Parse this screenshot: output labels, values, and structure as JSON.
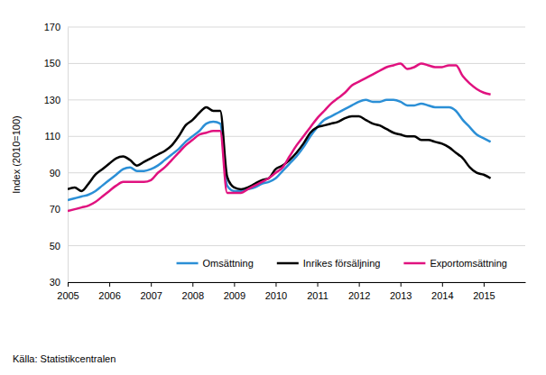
{
  "chart_data": {
    "type": "line",
    "y_label": "Index (2010=100)",
    "source": "Källa: Statistikcentralen",
    "xlim": [
      2005,
      2016
    ],
    "xticks": [
      2005,
      2006,
      2007,
      2008,
      2009,
      2010,
      2011,
      2012,
      2013,
      2014,
      2015
    ],
    "ylim": [
      30,
      170
    ],
    "yticks": [
      30,
      50,
      70,
      90,
      110,
      130,
      150,
      170
    ],
    "grid": true,
    "legend": "lower right",
    "x": [
      2005,
      2005.167,
      2005.333,
      2005.5,
      2005.667,
      2005.833,
      2006,
      2006.167,
      2006.333,
      2006.5,
      2006.667,
      2006.833,
      2007,
      2007.167,
      2007.333,
      2007.5,
      2007.667,
      2007.833,
      2008,
      2008.167,
      2008.333,
      2008.5,
      2008.667,
      2008.833,
      2009,
      2009.167,
      2009.333,
      2009.5,
      2009.667,
      2009.833,
      2010,
      2010.167,
      2010.333,
      2010.5,
      2010.667,
      2010.833,
      2011,
      2011.167,
      2011.333,
      2011.5,
      2011.667,
      2011.833,
      2012,
      2012.167,
      2012.333,
      2012.5,
      2012.667,
      2012.833,
      2013,
      2013.167,
      2013.333,
      2013.5,
      2013.667,
      2013.833,
      2014,
      2014.167,
      2014.333,
      2014.5,
      2014.667,
      2014.833,
      2015,
      2015.167
    ],
    "series": [
      {
        "name": "Omsättning",
        "color": "#2b8fd6",
        "values": [
          75,
          76,
          77,
          78,
          80,
          83,
          86,
          89,
          92,
          93,
          91,
          91,
          92,
          94,
          97,
          100,
          103,
          107,
          110,
          113,
          117,
          118,
          117,
          83,
          80,
          80,
          81,
          82,
          84,
          85,
          87,
          91,
          95,
          99,
          104,
          110,
          115,
          119,
          121,
          123,
          125,
          127,
          129,
          130,
          129,
          129,
          130,
          130,
          129,
          127,
          127,
          128,
          127,
          126,
          126,
          126,
          124,
          119,
          115,
          111,
          109,
          107
        ]
      },
      {
        "name": "Inrikes försäljning",
        "color": "#000000",
        "values": [
          81,
          82,
          80,
          84,
          89,
          92,
          95,
          98,
          99,
          97,
          94,
          96,
          98,
          100,
          102,
          105,
          110,
          116,
          119,
          123,
          126,
          124,
          124,
          88,
          82,
          81,
          82,
          84,
          86,
          87,
          92,
          94,
          97,
          101,
          106,
          112,
          115,
          116,
          117,
          118,
          120,
          121,
          121,
          119,
          117,
          116,
          114,
          112,
          111,
          110,
          110,
          108,
          108,
          107,
          106,
          104,
          101,
          98,
          93,
          90,
          89,
          87
        ]
      },
      {
        "name": "Exportomsättning",
        "color": "#e0127f",
        "values": [
          69,
          70,
          71,
          72,
          74,
          77,
          80,
          83,
          85,
          85,
          85,
          85,
          86,
          90,
          93,
          97,
          101,
          105,
          108,
          111,
          112,
          113,
          113,
          79,
          79,
          79,
          81,
          83,
          85,
          87,
          90,
          93,
          99,
          105,
          110,
          115,
          120,
          124,
          128,
          131,
          134,
          138,
          140,
          142,
          144,
          146,
          148,
          149,
          150,
          147,
          148,
          150,
          149,
          148,
          148,
          149,
          149,
          143,
          139,
          136,
          134,
          133
        ]
      }
    ]
  }
}
